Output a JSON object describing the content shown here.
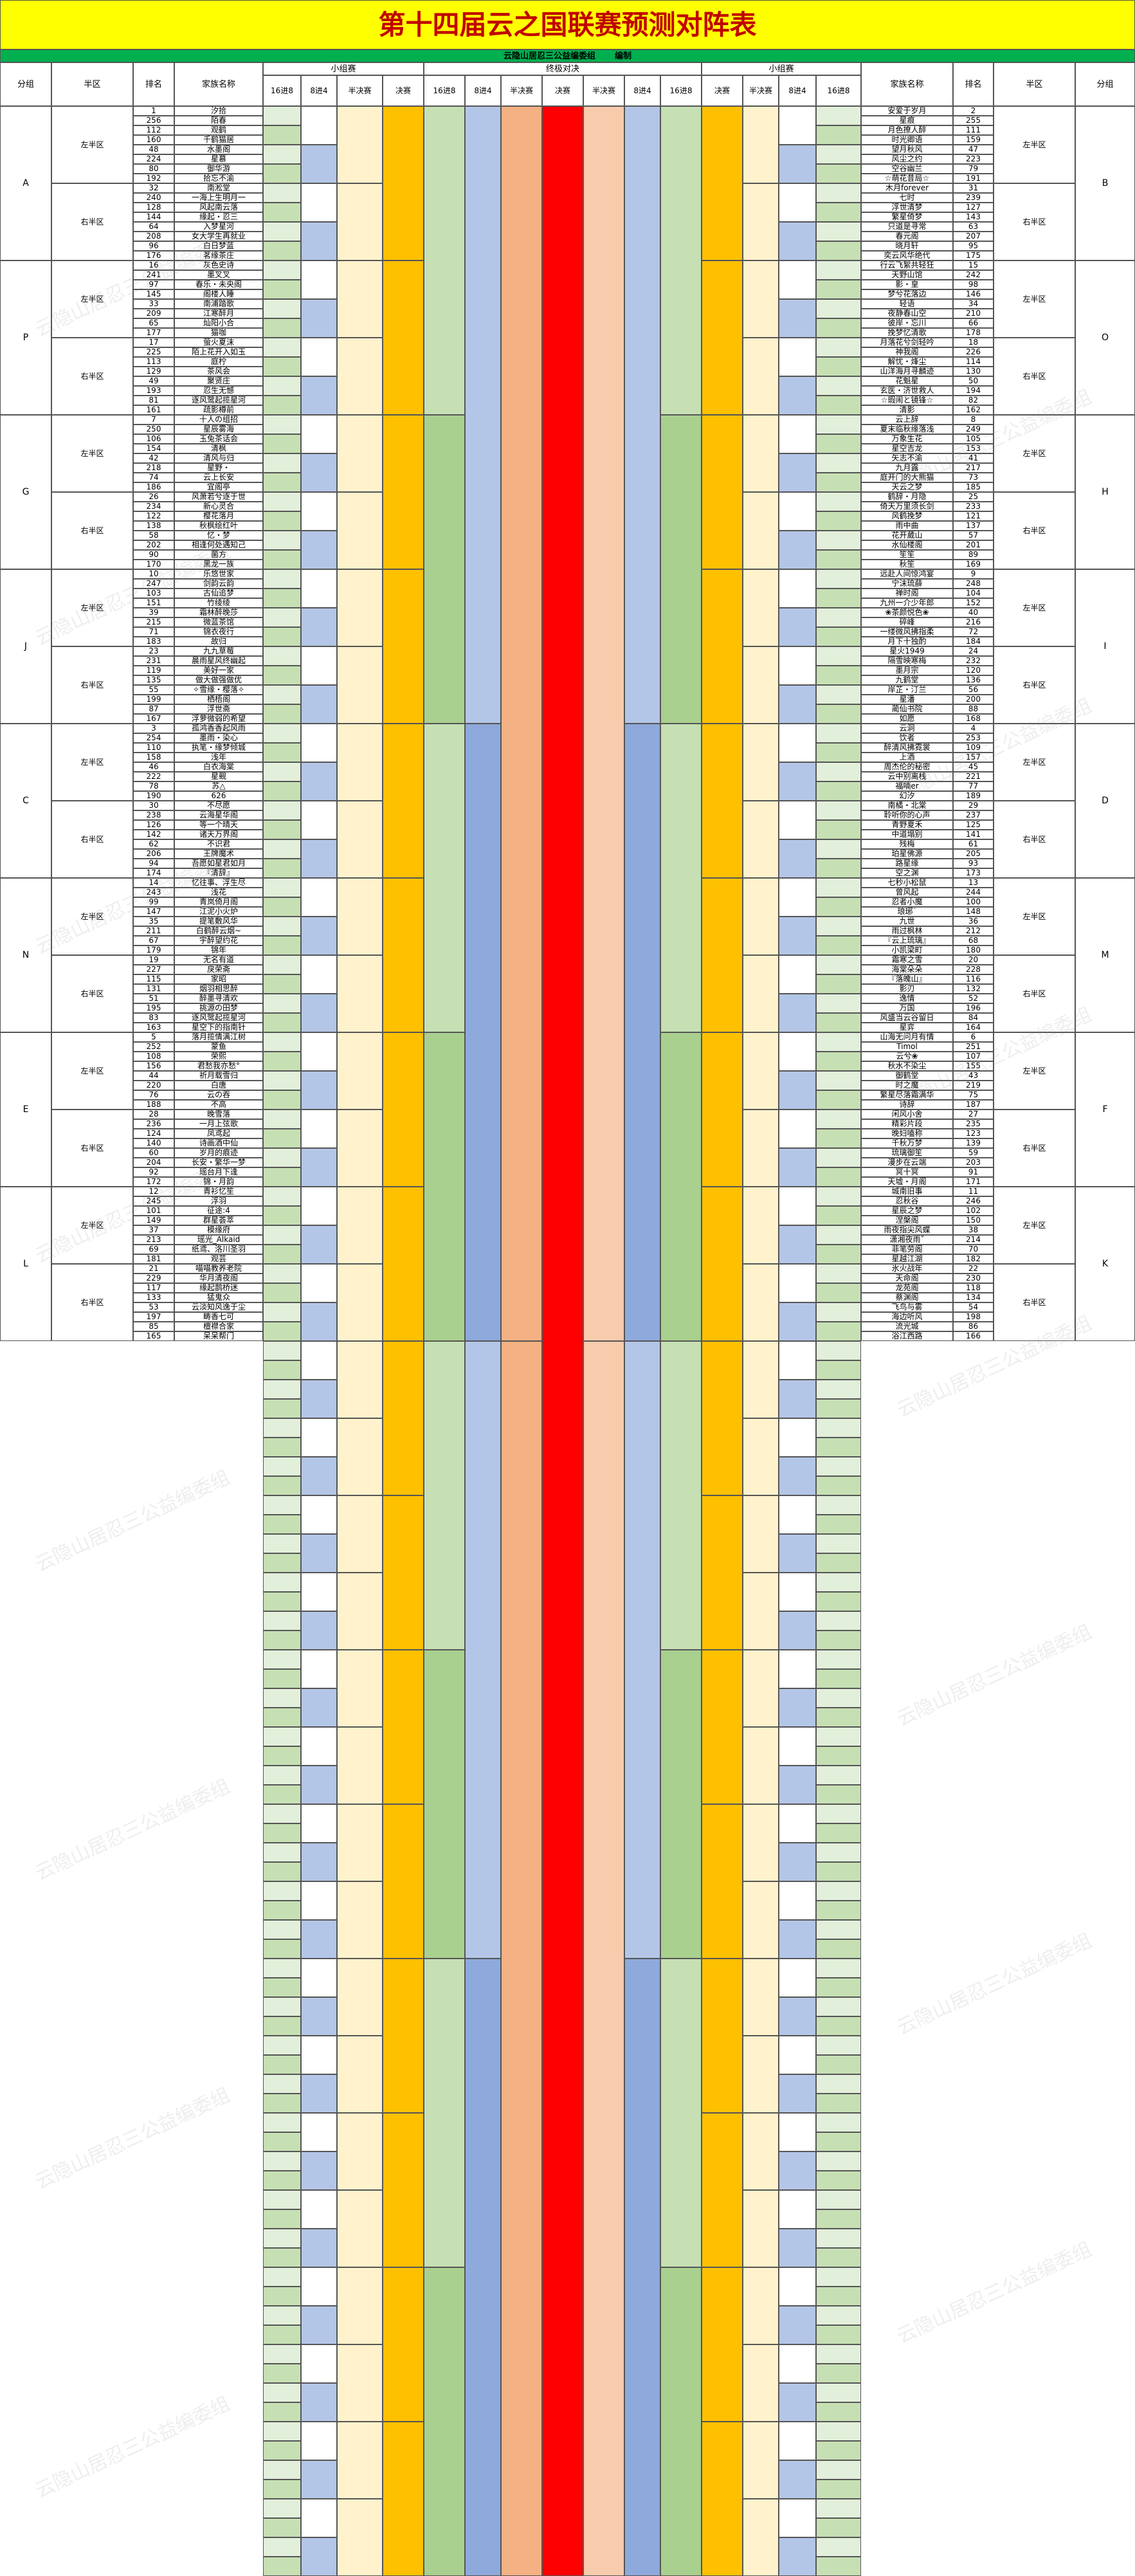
{
  "header": {
    "title": "第十四届云之国联赛预测对阵表",
    "org": "云隐山居忍三公益编委组",
    "action": "编制",
    "watermark": "云隐山居忍三公益编委组"
  },
  "columns": {
    "group": "分组",
    "half": "半区",
    "rank": "排名",
    "name": "家族名称",
    "stage_group": "小组赛",
    "stage_final": "终极对决",
    "r16": "16进8",
    "r8": "8进4",
    "semi": "半决赛",
    "final": "决赛"
  },
  "halves": [
    "左半区",
    "右半区"
  ],
  "left": [
    {
      "group": "A",
      "teams": [
        [
          1,
          "汐拾"
        ],
        [
          256,
          "陌春"
        ],
        [
          112,
          "观鹤"
        ],
        [
          160,
          "千鹤猫居"
        ],
        [
          48,
          "水墨阁"
        ],
        [
          224,
          "星慕"
        ],
        [
          80,
          "御华游"
        ],
        [
          192,
          "拾忘不渝"
        ],
        [
          32,
          "南淞堂"
        ],
        [
          240,
          "一海上生明月一"
        ],
        [
          128,
          "风起南云落"
        ],
        [
          144,
          "缘起・忍三"
        ],
        [
          64,
          "入梦星河"
        ],
        [
          208,
          "女大学生再就业"
        ],
        [
          96,
          "白日梦蓝"
        ],
        [
          176,
          "茗缘茶庄"
        ]
      ]
    },
    {
      "group": "P",
      "teams": [
        [
          16,
          "灰色史诗"
        ],
        [
          241,
          "墨叉叉"
        ],
        [
          97,
          "春乐・未央阁"
        ],
        [
          145,
          "阁楼人睡"
        ],
        [
          33,
          "南浦踏歌"
        ],
        [
          209,
          "江寒醉月"
        ],
        [
          65,
          "灿阳小合"
        ],
        [
          177,
          "猫咖"
        ],
        [
          17,
          "萤火夏沫"
        ],
        [
          225,
          "陌上花开入如玉"
        ],
        [
          113,
          "庭柠"
        ],
        [
          129,
          "茶风会"
        ],
        [
          49,
          "聚贤庄"
        ],
        [
          193,
          "忍生无憾"
        ],
        [
          81,
          "逐风鹭起揽星河"
        ],
        [
          161,
          "疏影樽前"
        ]
      ]
    },
    {
      "group": "G",
      "teams": [
        [
          7,
          "十人の组招"
        ],
        [
          250,
          "星辰雾海"
        ],
        [
          106,
          "玉兔茶话会"
        ],
        [
          154,
          "清枫"
        ],
        [
          42,
          "清风与归"
        ],
        [
          218,
          "星野・"
        ],
        [
          74,
          "云上长安"
        ],
        [
          186,
          "宜阁亭"
        ],
        [
          26,
          "风萧若兮逐于世"
        ],
        [
          234,
          "新心灵合"
        ],
        [
          122,
          "樱花落月"
        ],
        [
          138,
          "秋枫绘红叶"
        ],
        [
          58,
          "忆・梦"
        ],
        [
          202,
          "相逢何处遇知己"
        ],
        [
          90,
          "菌方"
        ],
        [
          170,
          "黑龙一族"
        ]
      ]
    },
    {
      "group": "J",
      "teams": [
        [
          10,
          "乐悠世家"
        ],
        [
          247,
          "剑韵云韵"
        ],
        [
          103,
          "古仙追梦"
        ],
        [
          151,
          "竹绫绫"
        ],
        [
          39,
          "霜林醉晚莎"
        ],
        [
          215,
          "微蓝茶馆"
        ],
        [
          71,
          "锦衣夜行"
        ],
        [
          183,
          "故归"
        ],
        [
          23,
          "九九草莓"
        ],
        [
          231,
          "晨雨星风终幽起"
        ],
        [
          119,
          "美好一家"
        ],
        [
          135,
          "做大做强做优"
        ],
        [
          55,
          "✧雪缘・樱落✧"
        ],
        [
          199,
          "栖梧阁"
        ],
        [
          87,
          "浮世斋"
        ],
        [
          167,
          "浮萝微弱的希望"
        ]
      ]
    },
    {
      "group": "C",
      "teams": [
        [
          3,
          "孤鸿香香起风雨"
        ],
        [
          254,
          "墨雨・染心"
        ],
        [
          110,
          "执笔・缘梦倾城"
        ],
        [
          158,
          "浅年"
        ],
        [
          46,
          "白衣海棠"
        ],
        [
          222,
          "星觋"
        ],
        [
          78,
          "苏△"
        ],
        [
          190,
          "626"
        ],
        [
          30,
          "不尽愿"
        ],
        [
          238,
          "云海星华阁"
        ],
        [
          126,
          "等一个晴天"
        ],
        [
          142,
          "诸天万界阁"
        ],
        [
          62,
          "不识君"
        ],
        [
          206,
          "王牌魔术"
        ],
        [
          94,
          "吾愿如星君如月"
        ],
        [
          174,
          "『清辞』"
        ]
      ]
    },
    {
      "group": "N",
      "teams": [
        [
          14,
          "忆往事、浮生尽"
        ],
        [
          243,
          "浅花"
        ],
        [
          99,
          "青岚倚月阁"
        ],
        [
          147,
          "江泥小火炉"
        ],
        [
          35,
          "提笔敷风华"
        ],
        [
          211,
          "白鹤醉云烟~"
        ],
        [
          67,
          "宇醉望约花"
        ],
        [
          179,
          "锦年"
        ],
        [
          19,
          "无名有道"
        ],
        [
          227,
          "戾荣斋"
        ],
        [
          115,
          "家昭"
        ],
        [
          131,
          "烟羽相思醉"
        ],
        [
          51,
          "醉墨寻清欢"
        ],
        [
          195,
          "挑源の田梦"
        ],
        [
          83,
          "逐风鹭起揽星河"
        ],
        [
          163,
          "星空下的指南针"
        ]
      ]
    },
    {
      "group": "E",
      "teams": [
        [
          5,
          "落月揽情满江树"
        ],
        [
          252,
          "蒙鱼"
        ],
        [
          108,
          "荣熙"
        ],
        [
          156,
          "君愁我亦愁°"
        ],
        [
          44,
          "祈月载雪归"
        ],
        [
          220,
          "白唐"
        ],
        [
          76,
          "云の吞"
        ],
        [
          188,
          "不高"
        ],
        [
          28,
          "晚雪落"
        ],
        [
          236,
          "一月上弦歌"
        ],
        [
          124,
          "凤鸢起"
        ],
        [
          140,
          "诗画酒中仙"
        ],
        [
          60,
          "岁月的痕迹"
        ],
        [
          204,
          "长安・繁华一梦"
        ],
        [
          92,
          "瑶台月下逢"
        ],
        [
          172,
          "锦・月韵"
        ]
      ]
    },
    {
      "group": "L",
      "teams": [
        [
          12,
          "青衫忆笙"
        ],
        [
          245,
          "浮羽"
        ],
        [
          101,
          "征途:4"
        ],
        [
          149,
          "群星荟萃"
        ],
        [
          37,
          "模缘府"
        ],
        [
          213,
          "瑶光_Alkaid"
        ],
        [
          69,
          "纸鸢、洛川圣羽"
        ],
        [
          181,
          "观芸"
        ],
        [
          21,
          "喵喵教养老院"
        ],
        [
          229,
          "华月清夜阁"
        ],
        [
          117,
          "缘起鹊桥迷"
        ],
        [
          133,
          "猛鬼众"
        ],
        [
          53,
          "云淡知风逸于尘"
        ],
        [
          197,
          "畴香七可"
        ],
        [
          85,
          "檀襟合家"
        ],
        [
          165,
          "呆呆帮门"
        ]
      ]
    }
  ],
  "right": [
    {
      "group": "B",
      "teams": [
        [
          2,
          "安爱于岁月"
        ],
        [
          255,
          "星痕"
        ],
        [
          111,
          "月色撩人醉"
        ],
        [
          159,
          "时光卿语"
        ],
        [
          47,
          "望月秋风"
        ],
        [
          223,
          "风尘之约"
        ],
        [
          79,
          "空谷幽兰"
        ],
        [
          191,
          "☆萌花昔局☆"
        ],
        [
          31,
          "木月forever"
        ],
        [
          239,
          "七时"
        ],
        [
          127,
          "浮世清梦"
        ],
        [
          143,
          "繁星倚梦"
        ],
        [
          63,
          "只道是寻常"
        ],
        [
          207,
          "春元阁"
        ],
        [
          95,
          "晓月轩"
        ],
        [
          175,
          "奕云风华绝代"
        ]
      ]
    },
    {
      "group": "O",
      "teams": [
        [
          15,
          "行云飞絮共轻狂"
        ],
        [
          242,
          "天野山馆"
        ],
        [
          98,
          "影・皇"
        ],
        [
          146,
          "梦兮花落边"
        ],
        [
          34,
          "轻语"
        ],
        [
          210,
          "夜静春山空"
        ],
        [
          66,
          "彼岸・忘川"
        ],
        [
          178,
          "挽梦忆清歌"
        ],
        [
          18,
          "月落花兮剑轻吟"
        ],
        [
          226,
          "神我阁"
        ],
        [
          114,
          "解忧・烽尘"
        ],
        [
          130,
          "山洋海月寻麟迹"
        ],
        [
          50,
          "花魁星"
        ],
        [
          194,
          "玄医・济世救人"
        ],
        [
          82,
          "☆瑕闹と镜锋☆"
        ],
        [
          162,
          "清影"
        ]
      ]
    },
    {
      "group": "H",
      "teams": [
        [
          8,
          "云上辞"
        ],
        [
          249,
          "夏末临秋缘落浅"
        ],
        [
          105,
          "万象生花"
        ],
        [
          153,
          "星空吉龙"
        ],
        [
          41,
          "矢志不渝"
        ],
        [
          217,
          "九月露"
        ],
        [
          73,
          "庭开门的大熊猫"
        ],
        [
          185,
          "天云之梦"
        ],
        [
          25,
          "鹤辞・月隐"
        ],
        [
          233,
          "倚天万里须长剑"
        ],
        [
          121,
          "风鹤挽梦"
        ],
        [
          137,
          "雨中曲"
        ],
        [
          57,
          "花开葳山"
        ],
        [
          201,
          "水仙楼阁"
        ],
        [
          89,
          "笙笙"
        ],
        [
          169,
          "秋笙"
        ]
      ]
    },
    {
      "group": "I",
      "teams": [
        [
          9,
          "远赴人间惊鸿宴"
        ],
        [
          248,
          "宁沫琉薛"
        ],
        [
          104,
          "禅时阁"
        ],
        [
          152,
          "九州一介少年郎"
        ],
        [
          40,
          "❀茶颜悦色❀"
        ],
        [
          216,
          "碎峰"
        ],
        [
          72,
          "一缕微风拂指柔"
        ],
        [
          184,
          "月下十独酌"
        ],
        [
          24,
          "星火1949"
        ],
        [
          232,
          "隔雪映寒梅"
        ],
        [
          120,
          "墨月宗"
        ],
        [
          136,
          "九鹤堂"
        ],
        [
          56,
          "岸芷・汀兰"
        ],
        [
          200,
          "星潘"
        ],
        [
          88,
          "蔺仙书院"
        ],
        [
          168,
          "如愿"
        ]
      ]
    },
    {
      "group": "D",
      "teams": [
        [
          4,
          "云洞"
        ],
        [
          253,
          "饮者"
        ],
        [
          109,
          "醉清风拂霓裳"
        ],
        [
          157,
          "上酒"
        ],
        [
          45,
          "周杰伦的秘密"
        ],
        [
          221,
          "云中别离栈"
        ],
        [
          77,
          "福喃er"
        ],
        [
          189,
          "幻汐"
        ],
        [
          29,
          "南橘・北棠"
        ],
        [
          237,
          "聆听你的心声"
        ],
        [
          125,
          "青野夏禾"
        ],
        [
          141,
          "中道塌别"
        ],
        [
          61,
          "残梅"
        ],
        [
          205,
          "珀星佛源"
        ],
        [
          93,
          "路星缘"
        ],
        [
          173,
          "空之渊"
        ]
      ]
    },
    {
      "group": "M",
      "teams": [
        [
          13,
          "七秒小松鼠"
        ],
        [
          244,
          "曾风起"
        ],
        [
          100,
          "忍者小魔"
        ],
        [
          148,
          "琅琊˙"
        ],
        [
          36,
          "九世"
        ],
        [
          212,
          "雨过枫林"
        ],
        [
          68,
          "『云上琉璃』"
        ],
        [
          180,
          "小凯梁町"
        ],
        [
          20,
          "霜寒之雪"
        ],
        [
          228,
          "海棠朵朵"
        ],
        [
          116,
          "『落魄山』"
        ],
        [
          132,
          "影刃"
        ],
        [
          52,
          "逸情"
        ],
        [
          196,
          "万国"
        ],
        [
          84,
          "风盛当云谷留日"
        ],
        [
          164,
          "星弈"
        ]
      ]
    },
    {
      "group": "F",
      "teams": [
        [
          6,
          "山海无问月有情"
        ],
        [
          251,
          "Timol"
        ],
        [
          107,
          "云兮❀"
        ],
        [
          155,
          "秋水不染尘"
        ],
        [
          43,
          "御鹤堂"
        ],
        [
          219,
          "时之魔"
        ],
        [
          75,
          "繁星尽落霜满华"
        ],
        [
          187,
          "诗辞"
        ],
        [
          27,
          "闲风小舍"
        ],
        [
          235,
          "精彩片段"
        ],
        [
          123,
          "晚妇嗑称"
        ],
        [
          139,
          "千秋万梦"
        ],
        [
          59,
          "琉璃御笙"
        ],
        [
          203,
          "漫步在云端"
        ],
        [
          91,
          "冥十冥"
        ],
        [
          171,
          "天墟・月阁"
        ]
      ]
    },
    {
      "group": "K",
      "teams": [
        [
          11,
          "城南旧事"
        ],
        [
          246,
          "忍秋谷"
        ],
        [
          102,
          "星辰之梦"
        ],
        [
          150,
          "涅槃阁"
        ],
        [
          38,
          "雨夜指尖风蝶"
        ],
        [
          214,
          "潇湘夜雨˚"
        ],
        [
          70,
          "菲笔劳阁"
        ],
        [
          182,
          "星越江湖"
        ],
        [
          22,
          "氷火战年"
        ],
        [
          230,
          "天命阁"
        ],
        [
          118,
          "龙苑阁"
        ],
        [
          134,
          "蔡渊阁"
        ],
        [
          54,
          "飞鸟与雾"
        ],
        [
          198,
          "海边听风"
        ],
        [
          86,
          "流光城"
        ],
        [
          166,
          "浴江西路"
        ]
      ]
    }
  ]
}
